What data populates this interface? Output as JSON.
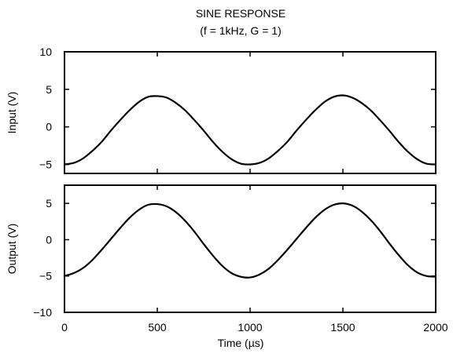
{
  "chart_data": {
    "type": "line",
    "title_line1": "SINE RESPONSE",
    "title_line2": "(f = 1kHz, G = 1)",
    "xlabel": "Time (µs)",
    "xlim": [
      0,
      2000
    ],
    "x_ticks": [
      0,
      500,
      1000,
      1500,
      2000
    ],
    "x_tick_labels": [
      "0",
      "500",
      "1000",
      "1500",
      "2000"
    ],
    "grid": false,
    "panels": [
      {
        "ylabel": "Input (V)",
        "ylim": [
          -6.2,
          10
        ],
        "y_ticks": [
          10,
          5,
          0,
          -5
        ],
        "y_tick_labels": [
          "10",
          "5",
          "0",
          "−5"
        ],
        "series": [
          {
            "x": [
              0,
              50,
              100,
              150,
              200,
              250,
              300,
              350,
              400,
              450,
              500,
              550,
              600,
              650,
              700,
              750,
              800,
              850,
              900,
              950,
              1000,
              1050,
              1100,
              1150,
              1200,
              1250,
              1300,
              1350,
              1400,
              1450,
              1500,
              1550,
              1600,
              1650,
              1700,
              1750,
              1800,
              1850,
              1900,
              1950,
              2000
            ],
            "y": [
              -5.0,
              -4.8,
              -4.2,
              -3.2,
              -2.0,
              -0.5,
              0.9,
              2.2,
              3.3,
              4.0,
              4.1,
              3.9,
              3.2,
              2.2,
              0.9,
              -0.5,
              -2.0,
              -3.3,
              -4.3,
              -4.9,
              -5.0,
              -4.8,
              -4.2,
              -3.2,
              -2.0,
              -0.5,
              0.9,
              2.2,
              3.3,
              4.0,
              4.2,
              3.9,
              3.2,
              2.2,
              0.9,
              -0.5,
              -2.0,
              -3.3,
              -4.3,
              -4.9,
              -5.0
            ]
          }
        ]
      },
      {
        "ylabel": "Output (V)",
        "ylim": [
          -10,
          7.5
        ],
        "y_ticks": [
          5,
          0,
          -5,
          -10
        ],
        "y_tick_labels": [
          "5",
          "0",
          "−5",
          "−10"
        ],
        "series": [
          {
            "x": [
              0,
              50,
              100,
              150,
              200,
              250,
              300,
              350,
              400,
              450,
              500,
              550,
              600,
              650,
              700,
              750,
              800,
              850,
              900,
              950,
              1000,
              1050,
              1100,
              1150,
              1200,
              1250,
              1300,
              1350,
              1400,
              1450,
              1500,
              1550,
              1600,
              1650,
              1700,
              1750,
              1800,
              1850,
              1900,
              1950,
              2000
            ],
            "y": [
              -5.0,
              -4.6,
              -3.9,
              -2.8,
              -1.4,
              0.1,
              1.6,
              3.0,
              4.1,
              4.8,
              4.9,
              4.6,
              3.8,
              2.6,
              1.1,
              -0.6,
              -2.2,
              -3.6,
              -4.6,
              -5.1,
              -5.2,
              -4.8,
              -4.0,
              -2.8,
              -1.4,
              0.1,
              1.6,
              3.0,
              4.1,
              4.8,
              5.0,
              4.7,
              3.9,
              2.7,
              1.2,
              -0.5,
              -2.1,
              -3.5,
              -4.5,
              -5.0,
              -5.1
            ]
          }
        ]
      }
    ]
  }
}
